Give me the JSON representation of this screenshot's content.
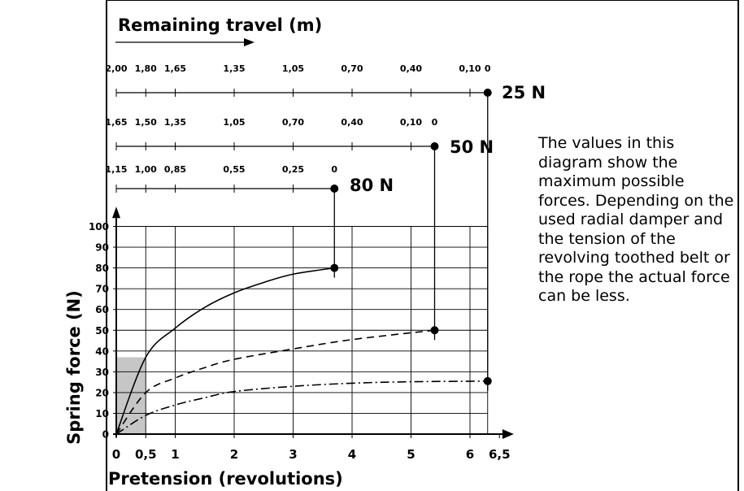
{
  "chart_data": {
    "type": "line",
    "xlabel": "Pretension (revolutions)",
    "ylabel": "Spring force (N)",
    "top_axis_label": "Remaining travel (m)",
    "x_ticks": [
      "0",
      "0,5",
      "1",
      "2",
      "3",
      "4",
      "5",
      "6",
      "6,5"
    ],
    "y_ticks": [
      "0",
      "10",
      "20",
      "30",
      "40",
      "50",
      "60",
      "70",
      "80",
      "90",
      "100"
    ],
    "xlim": [
      0,
      6.5
    ],
    "ylim": [
      0,
      100
    ],
    "grid": true,
    "shaded_region": {
      "x": [
        0,
        0.5
      ],
      "y": [
        0,
        37
      ]
    },
    "series": [
      {
        "name": "80 N",
        "line_style": "solid",
        "end": {
          "x": 3.7,
          "y": 80
        },
        "points": [
          [
            0,
            0
          ],
          [
            0.5,
            37
          ],
          [
            1,
            51
          ],
          [
            1.5,
            61
          ],
          [
            2,
            68
          ],
          [
            2.5,
            73
          ],
          [
            3,
            77
          ],
          [
            3.7,
            80
          ]
        ],
        "travel_scale": {
          "labels": [
            "1,15",
            "1,00",
            "0,85",
            "0,55",
            "0,25",
            "0"
          ],
          "x": [
            0,
            0.5,
            1,
            2,
            3,
            3.7
          ]
        }
      },
      {
        "name": "50 N",
        "line_style": "dashed",
        "end": {
          "x": 5.4,
          "y": 50
        },
        "points": [
          [
            0,
            0
          ],
          [
            0.5,
            20
          ],
          [
            1,
            27
          ],
          [
            1.5,
            32
          ],
          [
            2,
            36
          ],
          [
            3,
            41
          ],
          [
            4,
            45.5
          ],
          [
            5.4,
            50
          ]
        ],
        "travel_scale": {
          "labels": [
            "1,65",
            "1,50",
            "1,35",
            "1,05",
            "0,70",
            "0,40",
            "0,10",
            "0"
          ],
          "x": [
            0,
            0.5,
            1,
            2,
            3,
            4,
            5,
            5.4
          ]
        }
      },
      {
        "name": "25 N",
        "line_style": "dash-dot",
        "end": {
          "x": 6.3,
          "y": 25.5
        },
        "points": [
          [
            0,
            0
          ],
          [
            0.5,
            9
          ],
          [
            1,
            14
          ],
          [
            1.5,
            17.5
          ],
          [
            2,
            20.5
          ],
          [
            3,
            23
          ],
          [
            4,
            24.5
          ],
          [
            5,
            25.2
          ],
          [
            6.3,
            25.5
          ]
        ],
        "travel_scale": {
          "labels": [
            "2,00",
            "1,80",
            "1,65",
            "1,35",
            "1,05",
            "0,70",
            "0,40",
            "0,10",
            "0"
          ],
          "x": [
            0,
            0.5,
            1,
            2,
            3,
            4,
            5,
            6,
            6.3
          ]
        }
      }
    ]
  },
  "note": "The values in this diagram show the maximum possible forces. Depending on the used radial damper and the tension of the revolving toothed belt or the rope the actual force can be less.",
  "colors": {
    "line": "#000000",
    "shade": "#c6c6c6",
    "border": "#000000"
  }
}
